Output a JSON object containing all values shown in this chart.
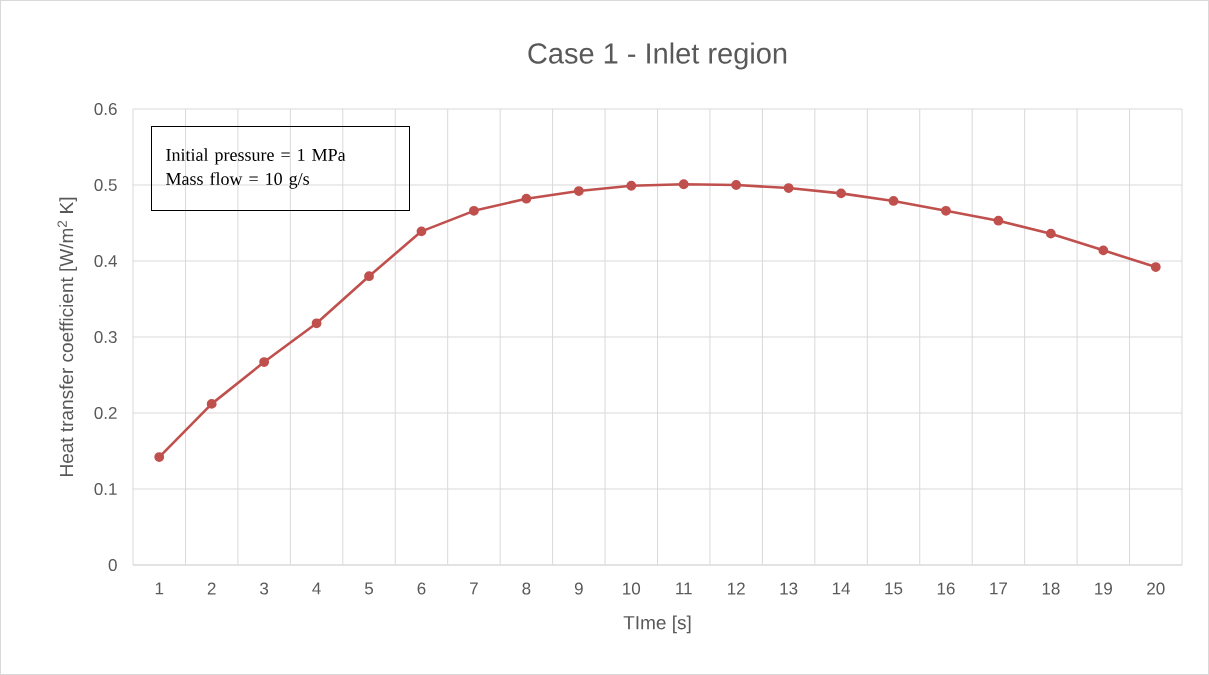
{
  "chart_data": {
    "type": "line",
    "title": "Case 1 - Inlet region",
    "xlabel": "TIme [s]",
    "ylabel": "Heat transfer coefficient [W/m$^{2}$ K]",
    "categories": [
      "1",
      "2",
      "3",
      "4",
      "5",
      "6",
      "7",
      "8",
      "9",
      "10",
      "11",
      "12",
      "13",
      "14",
      "15",
      "16",
      "17",
      "18",
      "19",
      "20"
    ],
    "series": [
      {
        "color": "#c0504d",
        "values": [
          0.142,
          0.212,
          0.267,
          0.318,
          0.38,
          0.439,
          0.466,
          0.482,
          0.492,
          0.499,
          0.501,
          0.5,
          0.496,
          0.489,
          0.479,
          0.466,
          0.453,
          0.436,
          0.414,
          0.392
        ]
      }
    ],
    "ylim": [
      0,
      0.6
    ],
    "yticks": [
      0,
      0.1,
      0.2,
      0.3,
      0.4,
      0.5,
      0.6
    ],
    "grid": true,
    "marker": "circle",
    "line_style": "solid",
    "annotations": [
      "Initial pressure = 1 MPa",
      "Mass flow = 10 g/s"
    ]
  }
}
